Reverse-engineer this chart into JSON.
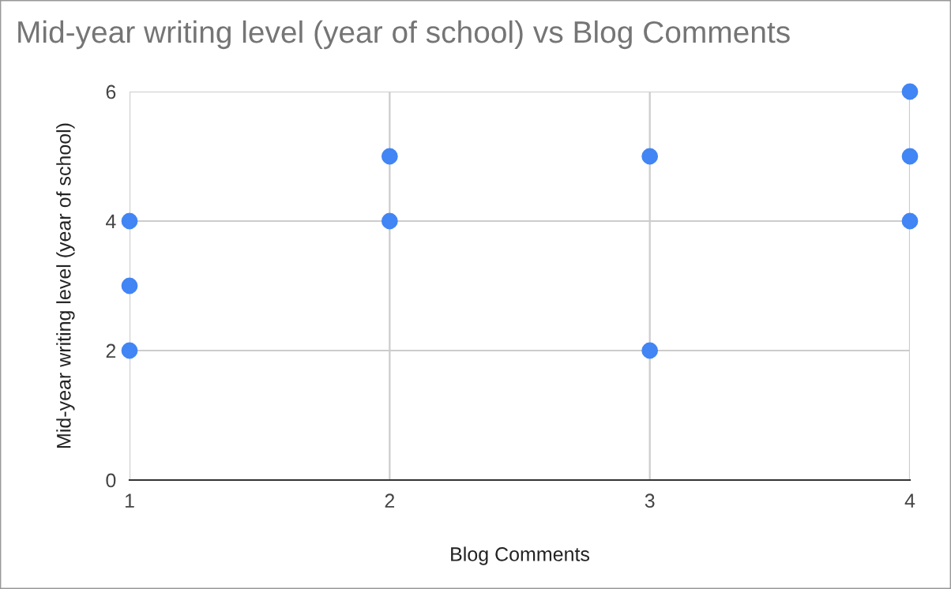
{
  "chart_data": {
    "type": "scatter",
    "title": "Mid-year writing level (year of school) vs Blog Comments",
    "xlabel": "Blog Comments",
    "ylabel": "Mid-year writing level (year of school)",
    "series": [
      {
        "color": "#4285f4",
        "x": [
          1,
          1,
          1,
          2,
          2,
          3,
          3,
          4,
          4,
          4
        ],
        "values": [
          4,
          3,
          2,
          5,
          4,
          5,
          2,
          6,
          5,
          4
        ]
      }
    ],
    "xlim": [
      1,
      4
    ],
    "xticks": [
      1,
      2,
      3,
      4
    ],
    "ylim": [
      0,
      6
    ],
    "yticks": [
      0,
      2,
      4,
      6
    ],
    "grid": true,
    "marker": "circle",
    "legend": false
  }
}
